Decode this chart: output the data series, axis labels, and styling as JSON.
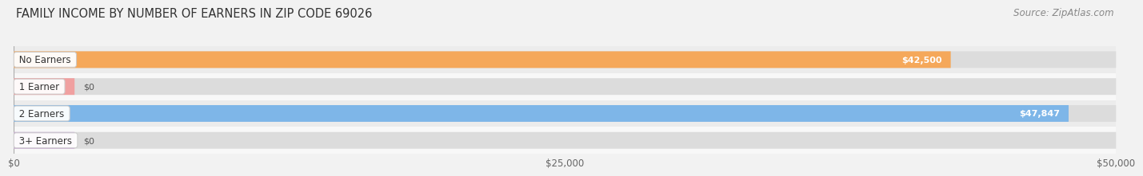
{
  "title": "FAMILY INCOME BY NUMBER OF EARNERS IN ZIP CODE 69026",
  "source": "Source: ZipAtlas.com",
  "categories": [
    "No Earners",
    "1 Earner",
    "2 Earners",
    "3+ Earners"
  ],
  "values": [
    42500,
    0,
    47847,
    0
  ],
  "bar_colors": [
    "#F5A85A",
    "#F0A0A0",
    "#7EB6E8",
    "#C9A8D4"
  ],
  "value_labels": [
    "$42,500",
    "$0",
    "$47,847",
    "$0"
  ],
  "xlim": [
    0,
    50000
  ],
  "xticks": [
    0,
    25000,
    50000
  ],
  "xticklabels": [
    "$0",
    "$25,000",
    "$50,000"
  ],
  "background_color": "#f2f2f2",
  "row_bg_colors": [
    "#e8e8e8",
    "#f5f5f5",
    "#e8e8e8",
    "#f5f5f5"
  ],
  "bar_track_color": "#e0e0e0",
  "title_fontsize": 10.5,
  "source_fontsize": 8.5,
  "bar_height": 0.62,
  "label_fontsize": 8.5,
  "value_fontsize": 8.0
}
